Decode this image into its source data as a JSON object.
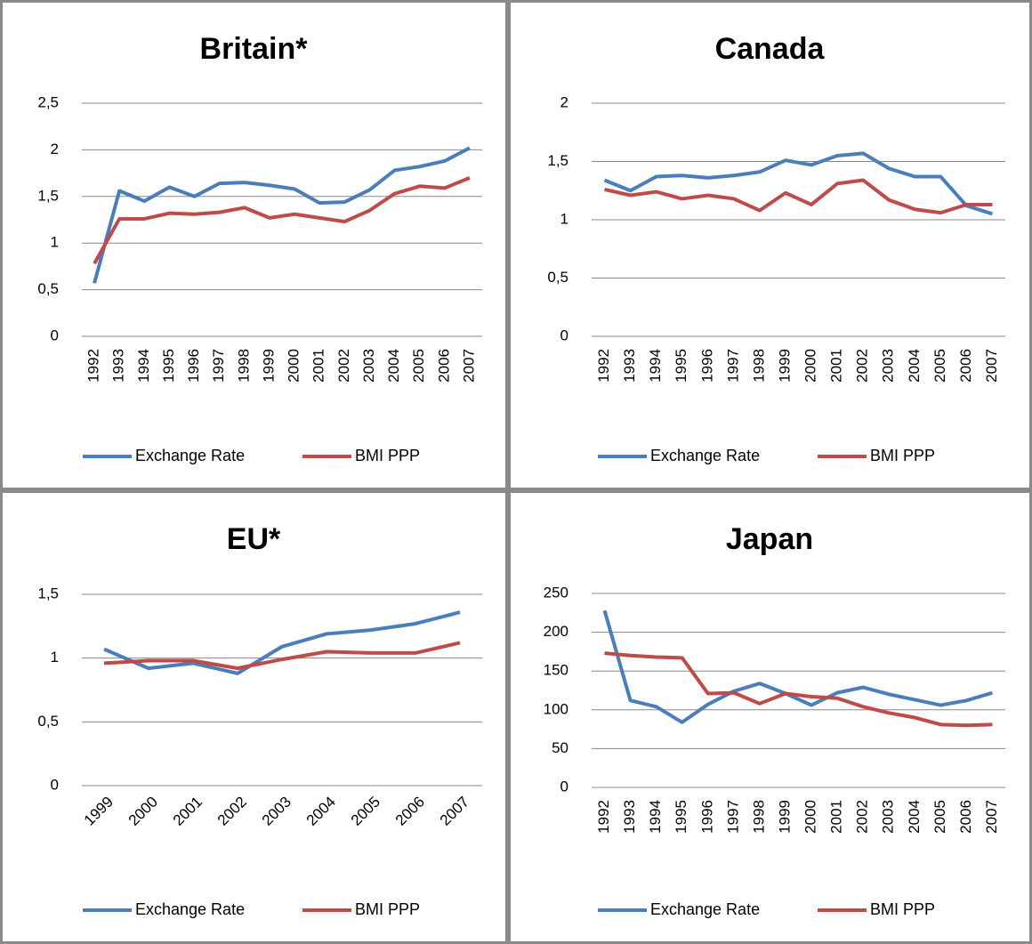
{
  "chart_data": [
    {
      "type": "line",
      "title": "Britain*",
      "categories": [
        "1992",
        "1993",
        "1994",
        "1995",
        "1996",
        "1997",
        "1998",
        "1999",
        "2000",
        "2001",
        "2002",
        "2003",
        "2004",
        "2005",
        "2006",
        "2007"
      ],
      "series": [
        {
          "name": "Exchange Rate",
          "color": "#4a7ebb",
          "values": [
            0.57,
            1.56,
            1.45,
            1.6,
            1.5,
            1.64,
            1.65,
            1.62,
            1.58,
            1.43,
            1.44,
            1.57,
            1.78,
            1.82,
            1.88,
            2.02
          ]
        },
        {
          "name": "BMI PPP",
          "color": "#be4b48",
          "values": [
            0.78,
            1.26,
            1.26,
            1.32,
            1.31,
            1.33,
            1.38,
            1.27,
            1.31,
            1.27,
            1.23,
            1.35,
            1.53,
            1.61,
            1.59,
            1.7
          ]
        }
      ],
      "ylim": [
        0,
        2.5
      ],
      "yticks": [
        0,
        {
          "value": 0.5,
          "label": "0,5"
        },
        1,
        {
          "value": 1.5,
          "label": "1,5"
        },
        2,
        {
          "value": 2.5,
          "label": "2,5"
        }
      ],
      "grid": true,
      "legend": "bottom"
    },
    {
      "type": "line",
      "title": "Canada",
      "categories": [
        "1992",
        "1993",
        "1994",
        "1995",
        "1996",
        "1997",
        "1998",
        "1999",
        "2000",
        "2001",
        "2002",
        "2003",
        "2004",
        "2005",
        "2006",
        "2007"
      ],
      "series": [
        {
          "name": "Exchange Rate",
          "color": "#4a7ebb",
          "values": [
            1.34,
            1.25,
            1.37,
            1.38,
            1.36,
            1.38,
            1.41,
            1.51,
            1.47,
            1.55,
            1.57,
            1.44,
            1.37,
            1.37,
            1.12,
            1.05
          ]
        },
        {
          "name": "BMI PPP",
          "color": "#be4b48",
          "values": [
            1.26,
            1.21,
            1.24,
            1.18,
            1.21,
            1.18,
            1.08,
            1.23,
            1.13,
            1.31,
            1.34,
            1.17,
            1.09,
            1.06,
            1.13,
            1.13
          ]
        }
      ],
      "ylim": [
        0,
        2
      ],
      "yticks": [
        0,
        {
          "value": 0.5,
          "label": "0,5"
        },
        1,
        {
          "value": 1.5,
          "label": "1,5"
        },
        2
      ],
      "grid": true,
      "legend": "bottom"
    },
    {
      "type": "line",
      "title": "EU*",
      "categories": [
        "1999",
        "2000",
        "2001",
        "2002",
        "2003",
        "2004",
        "2005",
        "2006",
        "2007"
      ],
      "series": [
        {
          "name": "Exchange Rate",
          "color": "#4a7ebb",
          "values": [
            1.07,
            0.92,
            0.96,
            0.88,
            1.09,
            1.19,
            1.22,
            1.27,
            1.36
          ]
        },
        {
          "name": "BMI PPP",
          "color": "#be4b48",
          "values": [
            0.96,
            0.98,
            0.98,
            0.92,
            0.99,
            1.05,
            1.04,
            1.04,
            1.12
          ]
        }
      ],
      "ylim": [
        0,
        1.5
      ],
      "yticks": [
        0,
        {
          "value": 0.5,
          "label": "0,5"
        },
        1,
        {
          "value": 1.5,
          "label": "1,5"
        }
      ],
      "grid": true,
      "legend": "bottom"
    },
    {
      "type": "line",
      "title": "Japan",
      "categories": [
        "1992",
        "1993",
        "1994",
        "1995",
        "1996",
        "1997",
        "1998",
        "1999",
        "2000",
        "2001",
        "2002",
        "2003",
        "2004",
        "2005",
        "2006",
        "2007"
      ],
      "series": [
        {
          "name": "Exchange Rate",
          "color": "#4a7ebb",
          "values": [
            228,
            112,
            104,
            84,
            107,
            124,
            134,
            121,
            106,
            122,
            129,
            120,
            113,
            106,
            112,
            122
          ]
        },
        {
          "name": "BMI PPP",
          "color": "#be4b48",
          "values": [
            173,
            170,
            168,
            167,
            121,
            122,
            108,
            121,
            117,
            115,
            104,
            96,
            90,
            81,
            80,
            81
          ]
        }
      ],
      "ylim": [
        0,
        250
      ],
      "yticks": [
        0,
        50,
        100,
        150,
        200,
        250
      ],
      "grid": true,
      "legend": "bottom"
    }
  ]
}
